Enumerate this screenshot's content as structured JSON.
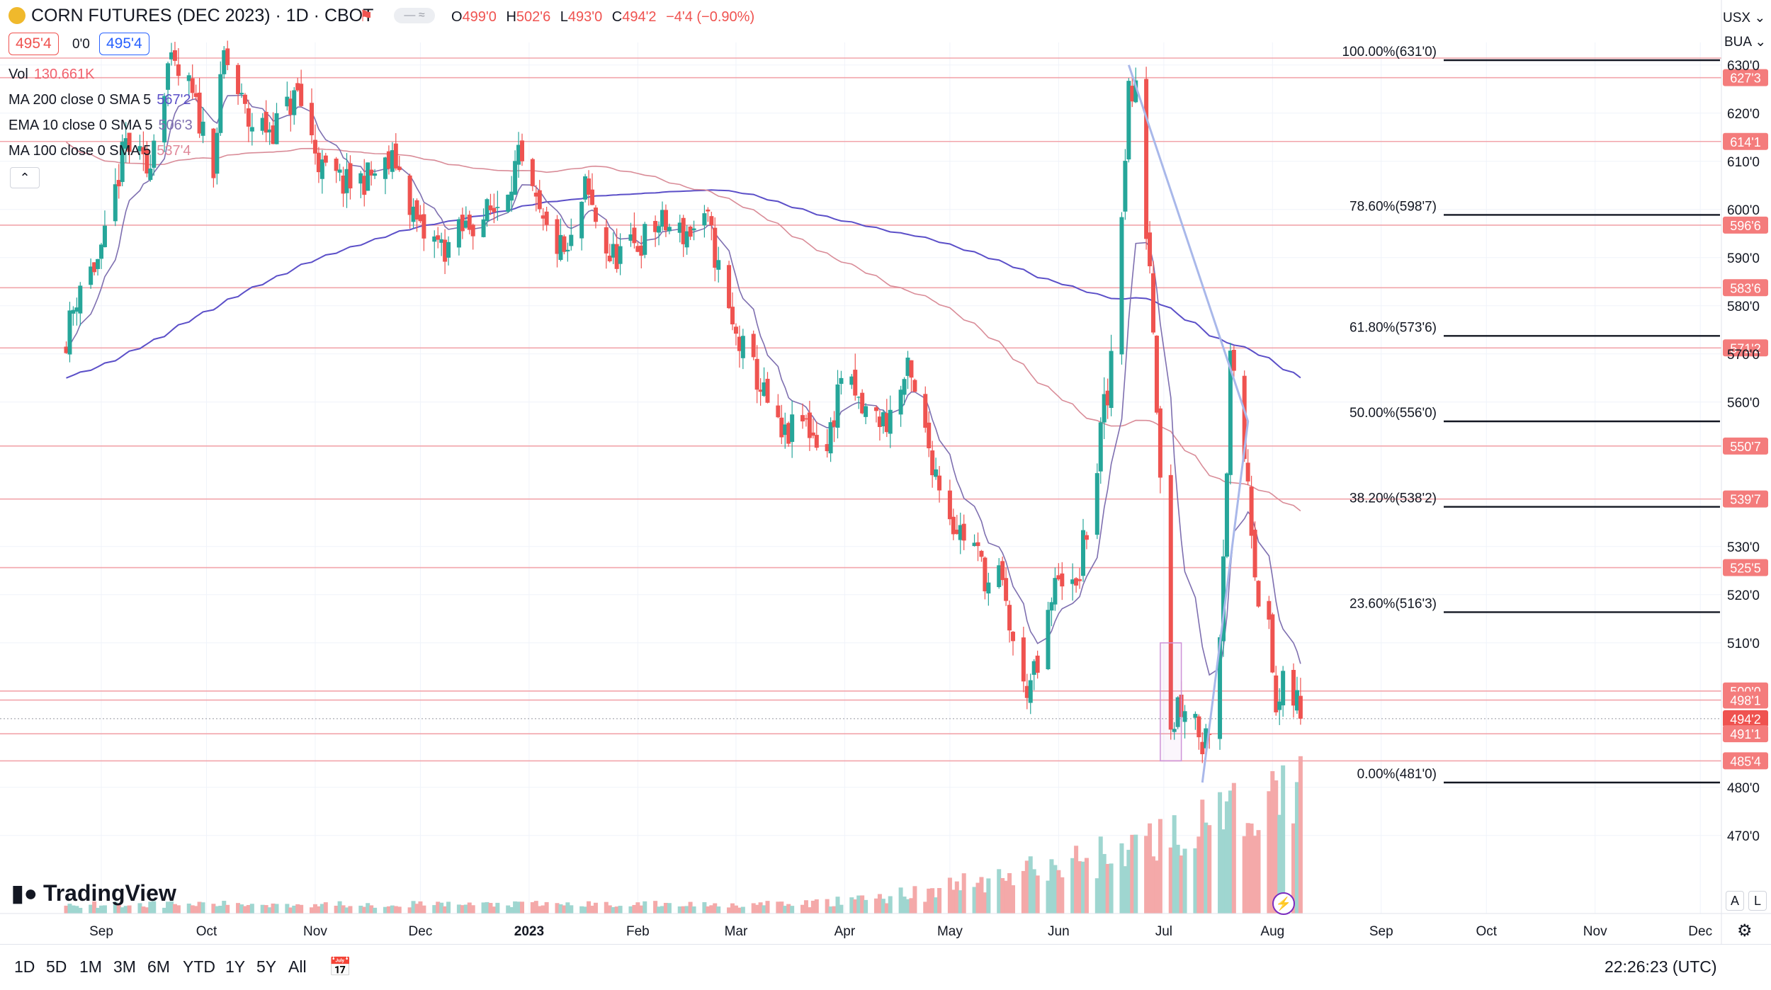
{
  "header": {
    "symbol_icon": "corn-coin-icon",
    "title": "CORN FUTURES (DEC 2023) · 1D · CBOT",
    "flag_icon": "red-flag-icon",
    "ohlc": {
      "o_label": "O",
      "o": "499'0",
      "h_label": "H",
      "h": "502'6",
      "l_label": "L",
      "l": "493'0",
      "c_label": "C",
      "c": "494'2",
      "change": "−4'4 (−0.90%)"
    },
    "sell": "495'4",
    "spread": "0'0",
    "buy": "495'4",
    "currency": "USX",
    "unit": "BUA"
  },
  "legend": [
    {
      "label": "Vol",
      "value": "130.661K",
      "color": "#f0616d"
    },
    {
      "label": "MA 200 close 0 SMA 5",
      "value": "567'2",
      "color": "#5b4fc8"
    },
    {
      "label": "EMA 10 close 0 SMA 5",
      "value": "506'3",
      "color": "#7e6fb0"
    },
    {
      "label": "MA 100 close 0 SMA 5",
      "value": "537'4",
      "color": "#e0899a"
    }
  ],
  "colors": {
    "up": "#26a69a",
    "down": "#ef5350",
    "hline": "#f2a5ab",
    "ma200": "#5b4fc8",
    "ema10": "#7e6fb0",
    "ma100": "#d98c98",
    "fib": "#131722",
    "drawing": "#a9b8ea"
  },
  "chart_data": {
    "type": "candlestick",
    "title": "CORN FUTURES (DEC 2023) · 1D · CBOT",
    "y_axis": {
      "range": [
        463,
        640
      ],
      "ticks": [
        "630'0",
        "620'0",
        "610'0",
        "600'0",
        "590'0",
        "580'0",
        "570'0",
        "560'0",
        "530'0",
        "520'0",
        "510'0",
        "480'0",
        "470'0"
      ]
    },
    "x_axis": {
      "ticks": [
        "Sep",
        "Oct",
        "Nov",
        "Dec",
        "2023",
        "Feb",
        "Mar",
        "Apr",
        "May",
        "Jun",
        "Jul",
        "Aug",
        "Sep",
        "Oct",
        "Nov",
        "Dec"
      ]
    },
    "price_keys": [
      [
        "2022-08-20",
        568
      ],
      [
        "2022-08-26",
        585
      ],
      [
        "2022-09-01",
        590
      ],
      [
        "2022-09-08",
        614
      ],
      [
        "2022-09-14",
        608
      ],
      [
        "2022-09-20",
        630
      ],
      [
        "2022-09-26",
        625
      ],
      [
        "2022-10-03",
        610
      ],
      [
        "2022-10-06",
        632
      ],
      [
        "2022-10-13",
        618
      ],
      [
        "2022-10-20",
        617
      ],
      [
        "2022-10-27",
        624
      ],
      [
        "2022-11-03",
        608
      ],
      [
        "2022-11-10",
        605
      ],
      [
        "2022-11-17",
        607
      ],
      [
        "2022-11-24",
        610
      ],
      [
        "2022-12-01",
        595
      ],
      [
        "2022-12-08",
        592
      ],
      [
        "2022-12-15",
        597
      ],
      [
        "2022-12-22",
        600
      ],
      [
        "2022-12-29",
        610
      ],
      [
        "2023-01-05",
        596
      ],
      [
        "2023-01-12",
        590
      ],
      [
        "2023-01-17",
        604
      ],
      [
        "2023-01-24",
        590
      ],
      [
        "2023-01-31",
        592
      ],
      [
        "2023-02-07",
        597
      ],
      [
        "2023-02-14",
        595
      ],
      [
        "2023-02-21",
        597
      ],
      [
        "2023-02-28",
        575
      ],
      [
        "2023-03-07",
        565
      ],
      [
        "2023-03-14",
        552
      ],
      [
        "2023-03-20",
        556
      ],
      [
        "2023-03-27",
        550
      ],
      [
        "2023-03-31",
        566
      ],
      [
        "2023-04-06",
        558
      ],
      [
        "2023-04-13",
        556
      ],
      [
        "2023-04-19",
        566
      ],
      [
        "2023-04-26",
        548
      ],
      [
        "2023-05-02",
        535
      ],
      [
        "2023-05-08",
        530
      ],
      [
        "2023-05-12",
        522
      ],
      [
        "2023-05-15",
        524
      ],
      [
        "2023-05-22",
        500
      ],
      [
        "2023-05-26",
        504
      ],
      [
        "2023-06-01",
        525
      ],
      [
        "2023-06-06",
        520
      ],
      [
        "2023-06-09",
        535
      ],
      [
        "2023-06-15",
        560
      ],
      [
        "2023-06-21",
        625
      ],
      [
        "2023-06-23",
        622
      ],
      [
        "2023-06-27",
        590
      ],
      [
        "2023-06-30",
        550
      ],
      [
        "2023-07-03",
        495
      ],
      [
        "2023-07-07",
        500
      ],
      [
        "2023-07-11",
        493
      ],
      [
        "2023-07-13",
        490
      ],
      [
        "2023-07-17",
        515
      ],
      [
        "2023-07-20",
        565
      ],
      [
        "2023-07-25",
        545
      ],
      [
        "2023-07-28",
        522
      ],
      [
        "2023-07-31",
        510
      ],
      [
        "2023-08-02",
        496
      ],
      [
        "2023-08-07",
        499
      ],
      [
        "2023-08-09",
        494.25
      ]
    ],
    "volume_shown": "130.661K",
    "horizontal_levels": [
      "627'3",
      "614'1",
      "596'6",
      "583'6",
      "571'2",
      "550'7",
      "539'7",
      "525'5",
      "500'0",
      "498'1",
      "494'2",
      "491'1",
      "485'4"
    ],
    "fibonacci": [
      {
        "label": "100.00%(631'0)",
        "price": 631.0
      },
      {
        "label": "78.60%(598'7)",
        "price": 598.875
      },
      {
        "label": "61.80%(573'6)",
        "price": 573.75
      },
      {
        "label": "50.00%(556'0)",
        "price": 556.0
      },
      {
        "label": "38.20%(538'2)",
        "price": 538.25
      },
      {
        "label": "23.60%(516'3)",
        "price": 516.375
      },
      {
        "label": "0.00%(481'0)",
        "price": 481.0
      }
    ],
    "last_price": "494'2"
  },
  "footer": {
    "logo_text": "TradingView",
    "ranges": [
      "1D",
      "5D",
      "1M",
      "3M",
      "6M",
      "YTD",
      "1Y",
      "5Y",
      "All"
    ],
    "time": "22:26:23 (UTC)",
    "auto_label": "A",
    "log_label": "L"
  }
}
